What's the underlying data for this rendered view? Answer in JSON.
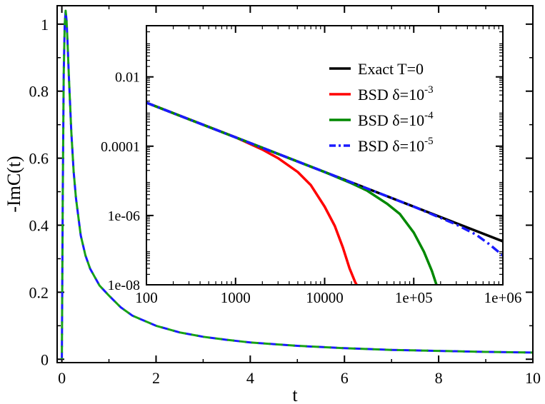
{
  "chart_data": [
    {
      "type": "line",
      "title": "",
      "xlabel": "t",
      "ylabel": "-ImC(t)",
      "xlim": [
        -0.1,
        10
      ],
      "ylim": [
        -0.01,
        1.055
      ],
      "xticks": [
        0,
        2,
        4,
        6,
        8,
        10
      ],
      "xtick_labels": [
        "0",
        "2",
        "4",
        "6",
        "8",
        "10"
      ],
      "yticks": [
        0,
        0.2,
        0.4,
        0.6,
        0.8,
        1
      ],
      "ytick_labels": [
        "0",
        "0.2",
        "0.4",
        "0.6",
        "0.8",
        "1"
      ],
      "grid": false,
      "legend": "none",
      "series": [
        {
          "color": "#1a1aff",
          "dash": "dashed",
          "x": [
            0,
            0.02,
            0.04,
            0.06,
            0.08,
            0.1,
            0.12,
            0.15,
            0.2,
            0.25,
            0.3,
            0.4,
            0.5,
            0.6,
            0.8,
            1,
            1.25,
            1.5,
            2,
            2.5,
            3,
            3.5,
            4,
            5,
            6,
            7,
            8,
            9,
            10
          ],
          "y": [
            0,
            0.5,
            0.85,
            1.0,
            1.04,
            1.01,
            0.95,
            0.84,
            0.68,
            0.56,
            0.48,
            0.37,
            0.31,
            0.27,
            0.22,
            0.19,
            0.155,
            0.13,
            0.1,
            0.08,
            0.067,
            0.058,
            0.05,
            0.04,
            0.033,
            0.028,
            0.025,
            0.022,
            0.02
          ]
        },
        {
          "color": "#17a117",
          "dash": "dashed",
          "x": [
            0,
            0.02,
            0.04,
            0.06,
            0.08,
            0.1,
            0.12,
            0.15,
            0.2,
            0.25,
            0.3,
            0.4,
            0.5,
            0.6,
            0.8,
            1,
            1.25,
            1.5,
            2,
            2.5,
            3,
            3.5,
            4,
            5,
            6,
            7,
            8,
            9,
            10
          ],
          "y": [
            0,
            0.5,
            0.85,
            1.0,
            1.04,
            1.01,
            0.95,
            0.84,
            0.68,
            0.56,
            0.48,
            0.37,
            0.31,
            0.27,
            0.22,
            0.19,
            0.155,
            0.13,
            0.1,
            0.08,
            0.067,
            0.058,
            0.05,
            0.04,
            0.033,
            0.028,
            0.025,
            0.022,
            0.02
          ]
        }
      ]
    },
    {
      "type": "line",
      "title": "",
      "xscale": "log",
      "yscale": "log",
      "xlim": [
        100,
        1000000
      ],
      "ylim": [
        1e-08,
        0.3
      ],
      "xticks": [
        100,
        1000,
        10000,
        100000,
        1000000
      ],
      "xtick_labels": [
        "100",
        "1000",
        "10000",
        "1e+05",
        "1e+06"
      ],
      "yticks": [
        1e-08,
        1e-06,
        0.0001,
        0.01
      ],
      "ytick_labels": [
        "1e-08",
        "1e-06",
        "0.0001",
        "0.01"
      ],
      "grid": false,
      "legend": "top-right",
      "legend_entries": [
        {
          "text": "Exact T=0",
          "base": "",
          "exp": ""
        },
        {
          "text": "BSD δ=10",
          "base": "",
          "exp": "-3"
        },
        {
          "text": "BSD δ=10",
          "base": "",
          "exp": "-4"
        },
        {
          "text": "BSD δ=10",
          "base": "",
          "exp": "-5"
        }
      ],
      "series": [
        {
          "color": "#000000",
          "dash": "solid",
          "x": [
            100,
            1000,
            10000,
            100000,
            1000000
          ],
          "y": [
            0.0018,
            0.00018,
            1.8e-05,
            1.8e-06,
            1.8e-07
          ]
        },
        {
          "color": "#ff0000",
          "dash": "solid",
          "x": [
            100,
            1000,
            2000,
            3000,
            5000,
            7000,
            10000,
            13000,
            16000,
            19000,
            22000,
            24000
          ],
          "y": [
            0.0018,
            0.00018,
            8e-05,
            4.5e-05,
            1.8e-05,
            7.5e-06,
            1.8e-06,
            5e-07,
            1.2e-07,
            3e-08,
            1.2e-08,
            8e-09
          ]
        },
        {
          "color": "#008800",
          "dash": "solid",
          "x": [
            100,
            10000,
            20000,
            30000,
            50000,
            70000,
            100000,
            130000,
            160000,
            185000
          ],
          "y": [
            0.0018,
            1.8e-05,
            8.5e-06,
            5.2e-06,
            2.2e-06,
            1.1e-06,
            3.2e-07,
            9e-08,
            2.5e-08,
            8e-09
          ]
        },
        {
          "color": "#1a1aff",
          "dash": "dash-dot",
          "x": [
            100,
            100000,
            300000,
            500000,
            700000,
            1000000
          ],
          "y": [
            0.0018,
            1.8e-06,
            5.5e-07,
            2.8e-07,
            1.5e-07,
            7e-08
          ]
        }
      ]
    }
  ]
}
